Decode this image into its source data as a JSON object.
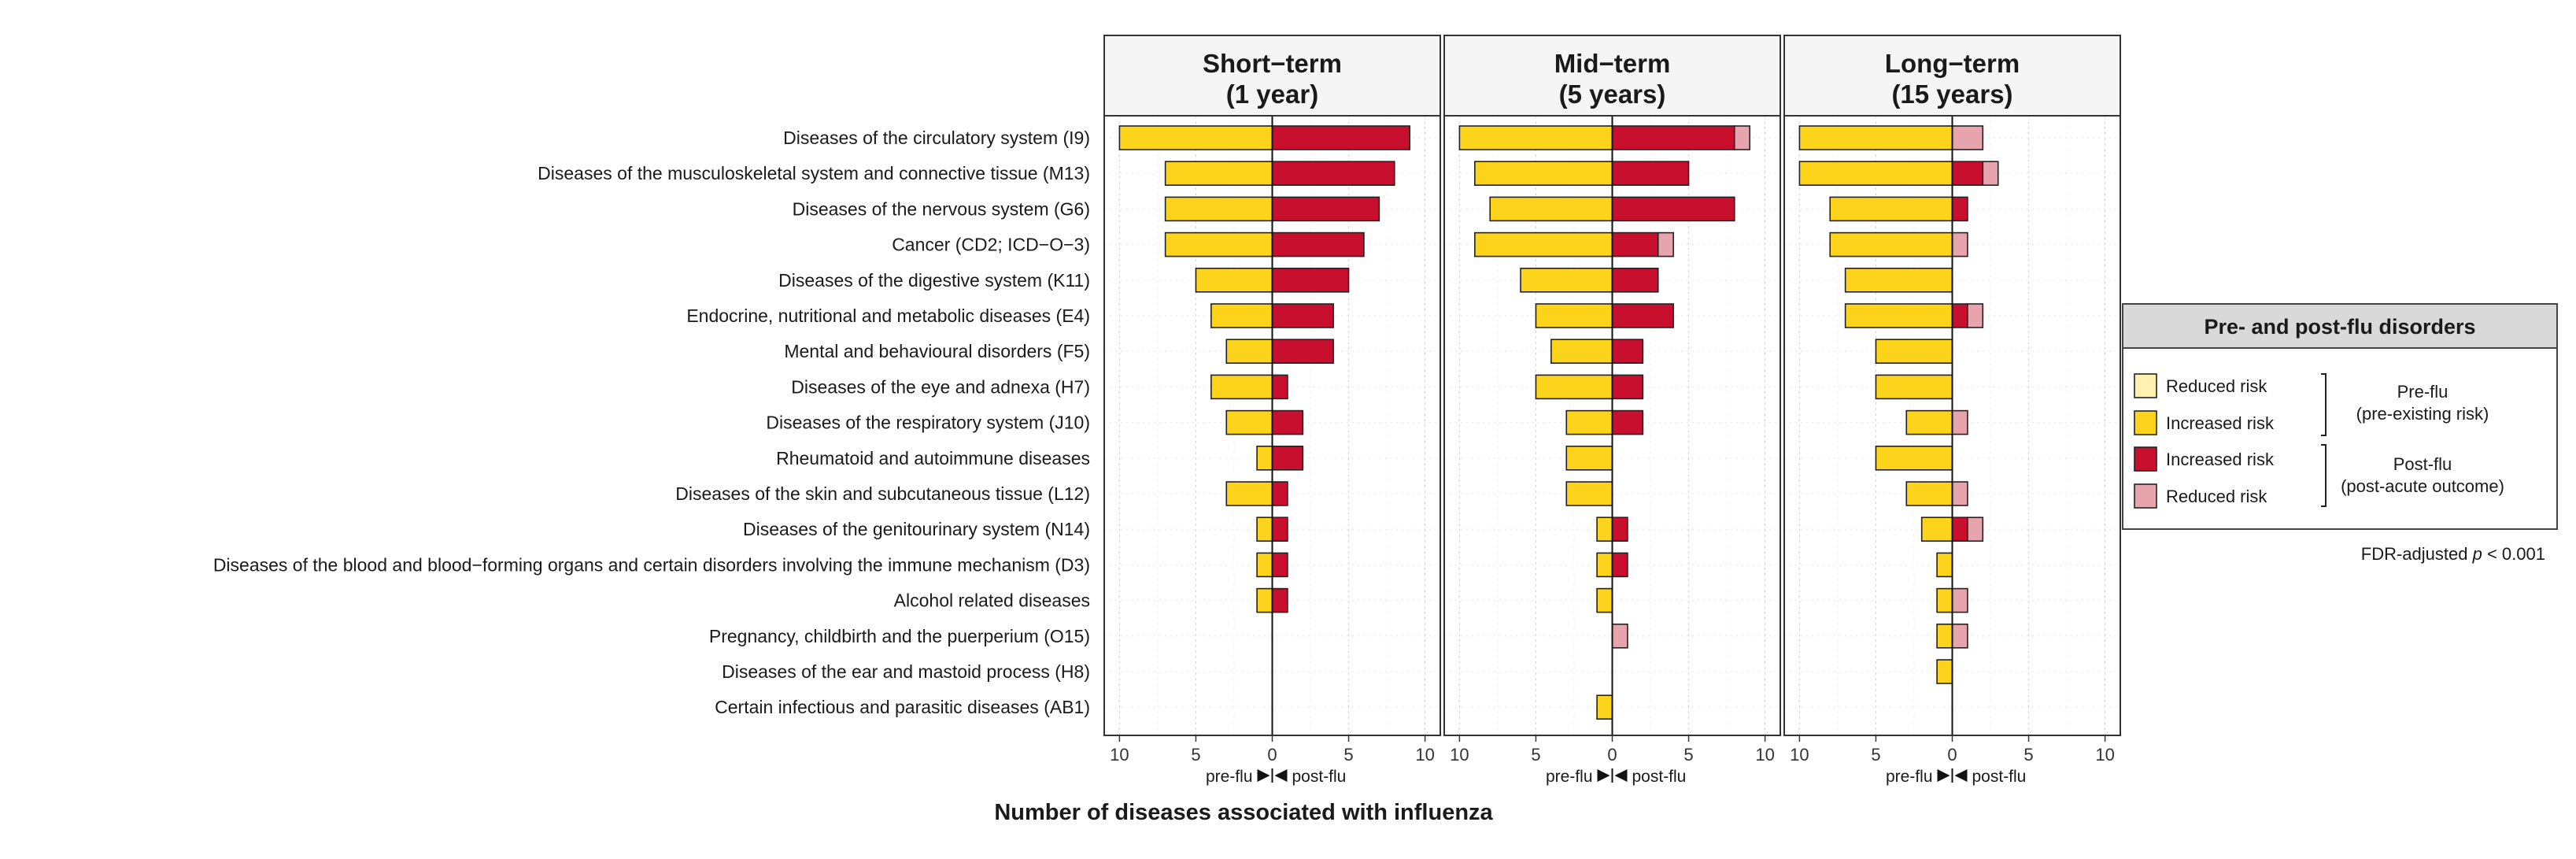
{
  "chart_data": {
    "type": "bar",
    "orientation": "horizontal",
    "xlabel": "Number of diseases associated with influenza",
    "direction_labels": {
      "left": "pre-flu",
      "right": "post-flu"
    },
    "xlim": [
      -11,
      11
    ],
    "ticks": [
      10,
      5,
      0,
      5,
      10
    ],
    "tick_values": [
      -10,
      -5,
      0,
      5,
      10
    ],
    "categories": [
      "Diseases of the circulatory system (I9)",
      "Diseases of the musculoskeletal system and connective tissue (M13)",
      "Diseases of the nervous system (G6)",
      "Cancer (CD2; ICD−O−3)",
      "Diseases of the digestive system (K11)",
      "Endocrine, nutritional and metabolic diseases (E4)",
      "Mental and behavioural disorders (F5)",
      "Diseases of the eye and adnexa (H7)",
      "Diseases of the respiratory system (J10)",
      "Rheumatoid and autoimmune diseases",
      "Diseases of the skin and subcutaneous tissue (L12)",
      "Diseases of the genitourinary system (N14)",
      "Diseases of the blood and blood−forming organs and certain disorders involving the immune mechanism (D3)",
      "Alcohol related diseases",
      "Pregnancy, childbirth and the puerperium (O15)",
      "Diseases of the ear and mastoid process (H8)",
      "Certain infectious and parasitic diseases (AB1)"
    ],
    "panels": [
      {
        "title_line1": "Short−term",
        "title_line2": "(1 year)",
        "pre_increased": [
          10,
          7,
          7,
          7,
          5,
          4,
          3,
          4,
          3,
          1,
          3,
          1,
          1,
          1,
          0,
          0,
          0
        ],
        "pre_reduced": [
          0,
          0,
          0,
          0,
          0,
          0,
          0,
          0,
          0,
          0,
          0,
          0,
          0,
          0,
          0,
          0,
          0
        ],
        "post_increased": [
          9,
          8,
          7,
          6,
          5,
          4,
          4,
          1,
          2,
          2,
          1,
          1,
          1,
          1,
          0,
          0,
          0
        ],
        "post_reduced": [
          0,
          0,
          0,
          0,
          0,
          0,
          0,
          0,
          0,
          0,
          0,
          0,
          0,
          0,
          0,
          0,
          0
        ]
      },
      {
        "title_line1": "Mid−term",
        "title_line2": "(5 years)",
        "pre_increased": [
          10,
          9,
          8,
          9,
          6,
          5,
          4,
          5,
          3,
          3,
          3,
          1,
          1,
          1,
          0,
          0,
          1
        ],
        "pre_reduced": [
          0,
          0,
          0,
          0,
          0,
          0,
          0,
          0,
          0,
          0,
          0,
          0,
          0,
          0,
          0,
          0,
          0
        ],
        "post_increased": [
          8,
          5,
          8,
          3,
          3,
          4,
          2,
          2,
          2,
          0,
          0,
          1,
          1,
          0,
          0,
          0,
          0
        ],
        "post_reduced": [
          1,
          0,
          0,
          1,
          0,
          0,
          0,
          0,
          0,
          0,
          0,
          0,
          0,
          0,
          1,
          0,
          0
        ]
      },
      {
        "title_line1": "Long−term",
        "title_line2": "(15 years)",
        "pre_increased": [
          10,
          10,
          8,
          8,
          7,
          7,
          5,
          5,
          3,
          5,
          3,
          2,
          1,
          1,
          1,
          1,
          0
        ],
        "pre_reduced": [
          0,
          0,
          0,
          0,
          0,
          0,
          0,
          0,
          0,
          0,
          0,
          0,
          0,
          0,
          0,
          0,
          0
        ],
        "post_increased": [
          0,
          2,
          1,
          0,
          0,
          1,
          0,
          0,
          0,
          0,
          0,
          1,
          0,
          0,
          0,
          0,
          0
        ],
        "post_reduced": [
          2,
          1,
          0,
          1,
          0,
          1,
          0,
          0,
          1,
          0,
          1,
          1,
          0,
          1,
          1,
          0,
          0
        ]
      }
    ],
    "colors": {
      "pre_reduced": "#fff1b0",
      "pre_increased": "#fdd31c",
      "post_increased": "#c8102e",
      "post_reduced": "#e8a4ac"
    },
    "legend": {
      "title": "Pre- and post-flu disorders",
      "placement": "right",
      "items": [
        {
          "key": "pre_reduced",
          "label": "Reduced risk"
        },
        {
          "key": "pre_increased",
          "label": "Increased risk"
        },
        {
          "key": "post_increased",
          "label": "Increased risk"
        },
        {
          "key": "post_reduced",
          "label": "Reduced risk"
        }
      ],
      "group_pre_line1": "Pre-flu",
      "group_pre_line2": "(pre-existing risk)",
      "group_post_line1": "Post-flu",
      "group_post_line2": "(post-acute outcome)"
    },
    "note_prefix": "FDR-adjusted ",
    "note_var": "p",
    "note_suffix": " < 0.001"
  }
}
